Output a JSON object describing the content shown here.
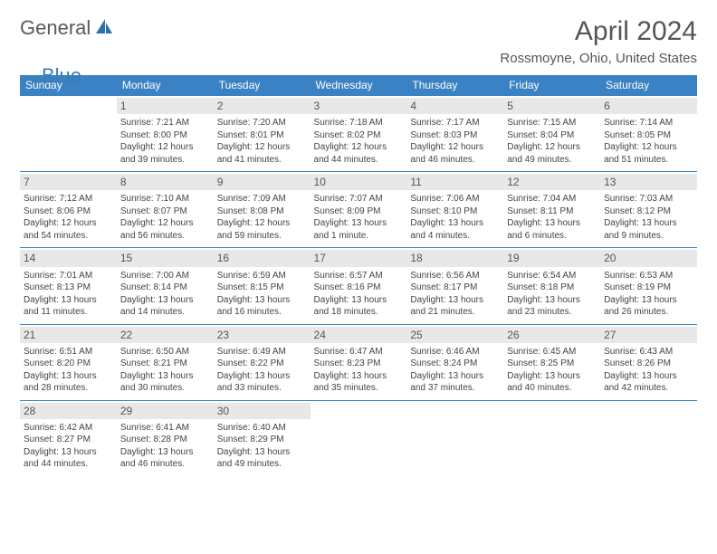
{
  "logo": {
    "general": "General",
    "blue": "Blue"
  },
  "title": "April 2024",
  "location": "Rossmoyne, Ohio, United States",
  "colors": {
    "header_bg": "#3b82c4",
    "header_text": "#ffffff",
    "daynum_bg": "#e8e8e8",
    "border": "#3b82c4",
    "text": "#444444",
    "logo_gray": "#5a5a5a",
    "logo_blue": "#3a7ab8"
  },
  "day_headers": [
    "Sunday",
    "Monday",
    "Tuesday",
    "Wednesday",
    "Thursday",
    "Friday",
    "Saturday"
  ],
  "weeks": [
    [
      null,
      {
        "n": "1",
        "sr": "Sunrise: 7:21 AM",
        "ss": "Sunset: 8:00 PM",
        "d1": "Daylight: 12 hours",
        "d2": "and 39 minutes."
      },
      {
        "n": "2",
        "sr": "Sunrise: 7:20 AM",
        "ss": "Sunset: 8:01 PM",
        "d1": "Daylight: 12 hours",
        "d2": "and 41 minutes."
      },
      {
        "n": "3",
        "sr": "Sunrise: 7:18 AM",
        "ss": "Sunset: 8:02 PM",
        "d1": "Daylight: 12 hours",
        "d2": "and 44 minutes."
      },
      {
        "n": "4",
        "sr": "Sunrise: 7:17 AM",
        "ss": "Sunset: 8:03 PM",
        "d1": "Daylight: 12 hours",
        "d2": "and 46 minutes."
      },
      {
        "n": "5",
        "sr": "Sunrise: 7:15 AM",
        "ss": "Sunset: 8:04 PM",
        "d1": "Daylight: 12 hours",
        "d2": "and 49 minutes."
      },
      {
        "n": "6",
        "sr": "Sunrise: 7:14 AM",
        "ss": "Sunset: 8:05 PM",
        "d1": "Daylight: 12 hours",
        "d2": "and 51 minutes."
      }
    ],
    [
      {
        "n": "7",
        "sr": "Sunrise: 7:12 AM",
        "ss": "Sunset: 8:06 PM",
        "d1": "Daylight: 12 hours",
        "d2": "and 54 minutes."
      },
      {
        "n": "8",
        "sr": "Sunrise: 7:10 AM",
        "ss": "Sunset: 8:07 PM",
        "d1": "Daylight: 12 hours",
        "d2": "and 56 minutes."
      },
      {
        "n": "9",
        "sr": "Sunrise: 7:09 AM",
        "ss": "Sunset: 8:08 PM",
        "d1": "Daylight: 12 hours",
        "d2": "and 59 minutes."
      },
      {
        "n": "10",
        "sr": "Sunrise: 7:07 AM",
        "ss": "Sunset: 8:09 PM",
        "d1": "Daylight: 13 hours",
        "d2": "and 1 minute."
      },
      {
        "n": "11",
        "sr": "Sunrise: 7:06 AM",
        "ss": "Sunset: 8:10 PM",
        "d1": "Daylight: 13 hours",
        "d2": "and 4 minutes."
      },
      {
        "n": "12",
        "sr": "Sunrise: 7:04 AM",
        "ss": "Sunset: 8:11 PM",
        "d1": "Daylight: 13 hours",
        "d2": "and 6 minutes."
      },
      {
        "n": "13",
        "sr": "Sunrise: 7:03 AM",
        "ss": "Sunset: 8:12 PM",
        "d1": "Daylight: 13 hours",
        "d2": "and 9 minutes."
      }
    ],
    [
      {
        "n": "14",
        "sr": "Sunrise: 7:01 AM",
        "ss": "Sunset: 8:13 PM",
        "d1": "Daylight: 13 hours",
        "d2": "and 11 minutes."
      },
      {
        "n": "15",
        "sr": "Sunrise: 7:00 AM",
        "ss": "Sunset: 8:14 PM",
        "d1": "Daylight: 13 hours",
        "d2": "and 14 minutes."
      },
      {
        "n": "16",
        "sr": "Sunrise: 6:59 AM",
        "ss": "Sunset: 8:15 PM",
        "d1": "Daylight: 13 hours",
        "d2": "and 16 minutes."
      },
      {
        "n": "17",
        "sr": "Sunrise: 6:57 AM",
        "ss": "Sunset: 8:16 PM",
        "d1": "Daylight: 13 hours",
        "d2": "and 18 minutes."
      },
      {
        "n": "18",
        "sr": "Sunrise: 6:56 AM",
        "ss": "Sunset: 8:17 PM",
        "d1": "Daylight: 13 hours",
        "d2": "and 21 minutes."
      },
      {
        "n": "19",
        "sr": "Sunrise: 6:54 AM",
        "ss": "Sunset: 8:18 PM",
        "d1": "Daylight: 13 hours",
        "d2": "and 23 minutes."
      },
      {
        "n": "20",
        "sr": "Sunrise: 6:53 AM",
        "ss": "Sunset: 8:19 PM",
        "d1": "Daylight: 13 hours",
        "d2": "and 26 minutes."
      }
    ],
    [
      {
        "n": "21",
        "sr": "Sunrise: 6:51 AM",
        "ss": "Sunset: 8:20 PM",
        "d1": "Daylight: 13 hours",
        "d2": "and 28 minutes."
      },
      {
        "n": "22",
        "sr": "Sunrise: 6:50 AM",
        "ss": "Sunset: 8:21 PM",
        "d1": "Daylight: 13 hours",
        "d2": "and 30 minutes."
      },
      {
        "n": "23",
        "sr": "Sunrise: 6:49 AM",
        "ss": "Sunset: 8:22 PM",
        "d1": "Daylight: 13 hours",
        "d2": "and 33 minutes."
      },
      {
        "n": "24",
        "sr": "Sunrise: 6:47 AM",
        "ss": "Sunset: 8:23 PM",
        "d1": "Daylight: 13 hours",
        "d2": "and 35 minutes."
      },
      {
        "n": "25",
        "sr": "Sunrise: 6:46 AM",
        "ss": "Sunset: 8:24 PM",
        "d1": "Daylight: 13 hours",
        "d2": "and 37 minutes."
      },
      {
        "n": "26",
        "sr": "Sunrise: 6:45 AM",
        "ss": "Sunset: 8:25 PM",
        "d1": "Daylight: 13 hours",
        "d2": "and 40 minutes."
      },
      {
        "n": "27",
        "sr": "Sunrise: 6:43 AM",
        "ss": "Sunset: 8:26 PM",
        "d1": "Daylight: 13 hours",
        "d2": "and 42 minutes."
      }
    ],
    [
      {
        "n": "28",
        "sr": "Sunrise: 6:42 AM",
        "ss": "Sunset: 8:27 PM",
        "d1": "Daylight: 13 hours",
        "d2": "and 44 minutes."
      },
      {
        "n": "29",
        "sr": "Sunrise: 6:41 AM",
        "ss": "Sunset: 8:28 PM",
        "d1": "Daylight: 13 hours",
        "d2": "and 46 minutes."
      },
      {
        "n": "30",
        "sr": "Sunrise: 6:40 AM",
        "ss": "Sunset: 8:29 PM",
        "d1": "Daylight: 13 hours",
        "d2": "and 49 minutes."
      },
      null,
      null,
      null,
      null
    ]
  ]
}
